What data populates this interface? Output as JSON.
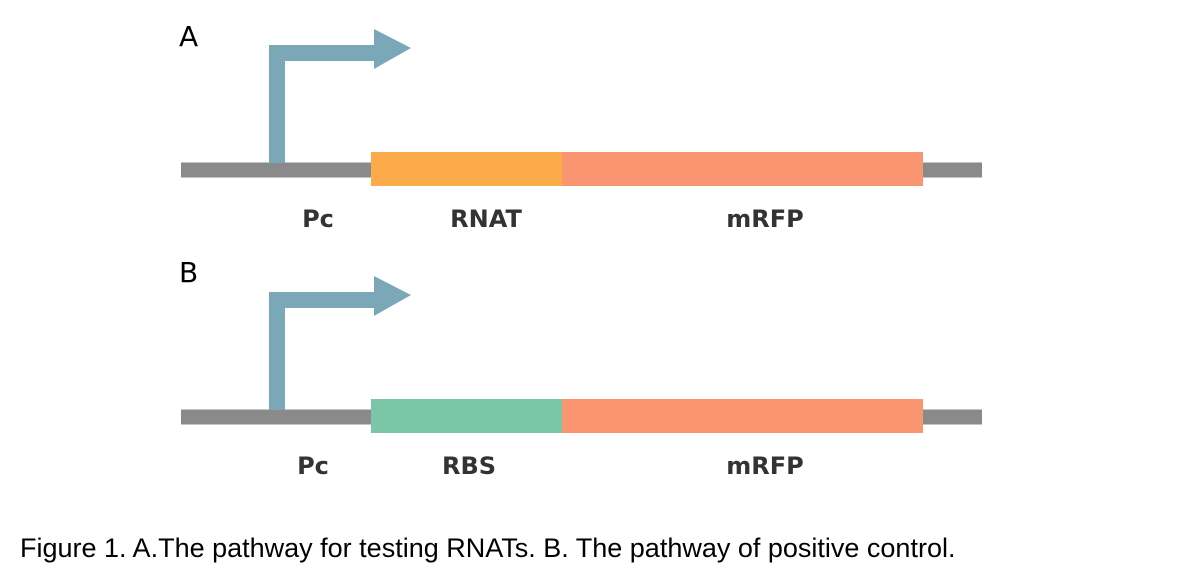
{
  "panels": [
    {
      "letter": "A",
      "promoter": "Pc",
      "elements": [
        {
          "label": "RNAT",
          "color": "#fbab4a"
        },
        {
          "label": "mRFP",
          "color": "#f99570"
        }
      ]
    },
    {
      "letter": "B",
      "promoter": "Pc",
      "elements": [
        {
          "label": "RBS",
          "color": "#7ac6a6"
        },
        {
          "label": "mRFP",
          "color": "#f99570"
        }
      ]
    }
  ],
  "colors": {
    "backbone": "#8a8a8a",
    "promoter_arrow": "#7aa8b8"
  },
  "caption": "Figure 1. A.The pathway for testing RNATs. B. The pathway of positive control."
}
